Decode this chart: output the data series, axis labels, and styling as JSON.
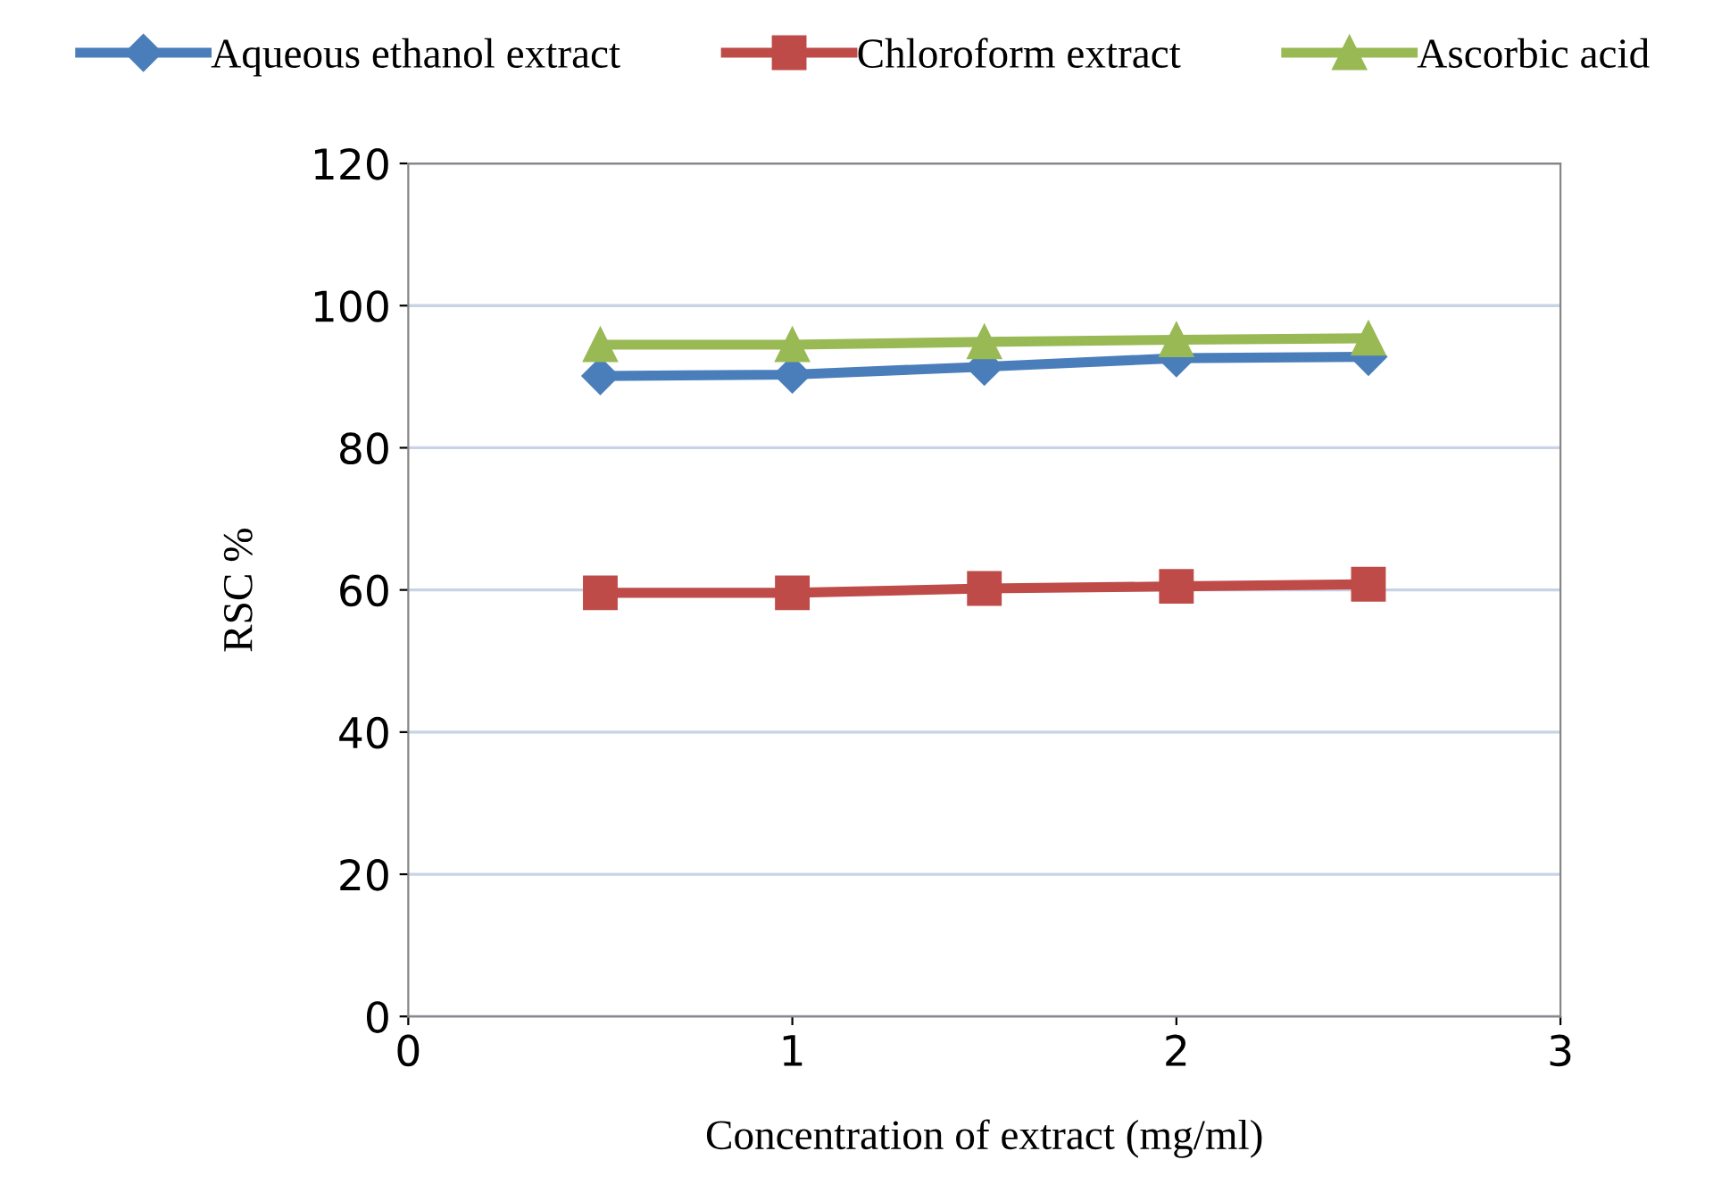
{
  "chart_data": {
    "type": "line",
    "xlabel": "Concentration of extract (mg/ml)",
    "ylabel": "RSC %",
    "x": [
      0.5,
      1,
      1.5,
      2,
      2.5
    ],
    "series": [
      {
        "name": "Aqueous ethanol extract",
        "color": "#4a7ebb",
        "marker": "diamond",
        "values": [
          90.1,
          90.3,
          91.4,
          92.6,
          92.8
        ]
      },
      {
        "name": "Chloroform extract",
        "color": "#be4b48",
        "marker": "square",
        "values": [
          59.6,
          59.6,
          60.2,
          60.5,
          60.8
        ]
      },
      {
        "name": "Ascorbic acid",
        "color": "#98b954",
        "marker": "triangle",
        "values": [
          94.5,
          94.5,
          94.9,
          95.2,
          95.4
        ]
      }
    ],
    "xlim": [
      0,
      3
    ],
    "xticks": [
      0,
      1,
      2,
      3
    ],
    "ylim": [
      0,
      120
    ],
    "yticks": [
      0,
      20,
      40,
      60,
      80,
      100,
      120
    ],
    "grid": "y",
    "legend": "top"
  }
}
